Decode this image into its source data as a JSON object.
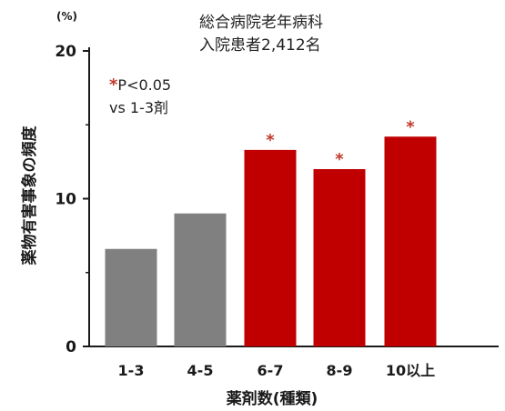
{
  "chart_data": {
    "type": "bar",
    "title_lines": [
      "総合病院老年病科",
      "入院患者2,412名"
    ],
    "unit": "(%)",
    "ylabel": "薬物有害事象の頻度",
    "xlabel": "薬剤数(種類)",
    "categories": [
      "1-3",
      "4-5",
      "6-7",
      "8-9",
      "10以上"
    ],
    "values": [
      6.6,
      9.0,
      13.3,
      12.0,
      14.2
    ],
    "significant": [
      false,
      false,
      true,
      true,
      true
    ],
    "significance_mark": "*",
    "note_line1": "P<0.05",
    "note_line2": "vs 1-3剤",
    "ylim": [
      0,
      20
    ],
    "yticks": [
      0,
      10,
      20
    ],
    "grid": false,
    "legend": "none",
    "colors": {
      "baseline": "#808080",
      "significant": "#c00000",
      "star": "#c0392b",
      "axis": "#1a1a1a"
    }
  }
}
